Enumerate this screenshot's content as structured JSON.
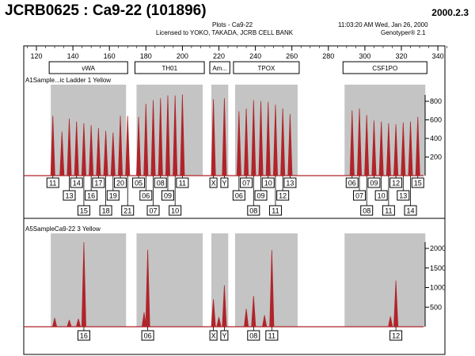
{
  "window": {
    "title": "JCRB0625 : Ca9-22 (101896)",
    "date_code": "2000.2.3"
  },
  "header": {
    "plots_label": "Plots  -  Ca9-22",
    "license": "Licensed to YOKO, TAKADA, JCRB CELL BANK",
    "timestamp": "11:03:20 AM  Wed, Jan 26, 2000",
    "app_version": "Genotyper® 2.1"
  },
  "ruler": {
    "ticks": [
      120,
      140,
      160,
      180,
      200,
      220,
      240,
      260,
      280,
      300,
      320,
      340
    ]
  },
  "loci": [
    {
      "name": "vWA",
      "start": 127,
      "end": 170
    },
    {
      "name": "TH01",
      "start": 174,
      "end": 212
    },
    {
      "name": "Am...",
      "start": 215,
      "end": 226
    },
    {
      "name": "TPOX",
      "start": 228,
      "end": 264
    },
    {
      "name": "CSF1PO",
      "start": 288,
      "end": 334
    }
  ],
  "panels": [
    {
      "title": "A1Sample...ic Ladder  1 Yellow",
      "y_ticks": [
        "200",
        "400",
        "600",
        "800"
      ],
      "bins": [
        [
          127,
          170
        ],
        [
          174,
          212
        ],
        [
          215,
          226
        ],
        [
          228,
          264
        ],
        [
          288,
          334
        ]
      ],
      "peaks": [
        [
          129,
          640
        ],
        [
          134,
          470
        ],
        [
          138,
          610
        ],
        [
          142,
          580
        ],
        [
          146,
          560
        ],
        [
          150,
          540
        ],
        [
          154,
          510
        ],
        [
          158,
          480
        ],
        [
          162,
          460
        ],
        [
          166,
          640
        ],
        [
          170,
          640
        ],
        [
          176,
          630
        ],
        [
          180,
          770
        ],
        [
          184,
          810
        ],
        [
          188,
          830
        ],
        [
          192,
          860
        ],
        [
          196,
          860
        ],
        [
          200,
          870
        ],
        [
          217,
          820
        ],
        [
          223,
          830
        ],
        [
          231,
          690
        ],
        [
          235,
          720
        ],
        [
          239,
          810
        ],
        [
          243,
          800
        ],
        [
          247,
          790
        ],
        [
          251,
          760
        ],
        [
          255,
          720
        ],
        [
          259,
          660
        ],
        [
          293,
          700
        ],
        [
          297,
          720
        ],
        [
          301,
          650
        ],
        [
          305,
          590
        ],
        [
          309,
          580
        ],
        [
          313,
          560
        ],
        [
          317,
          550
        ],
        [
          321,
          570
        ],
        [
          325,
          580
        ],
        [
          329,
          630
        ]
      ],
      "labels": [
        {
          "text": "11",
          "pos": 129,
          "row": 0
        },
        {
          "text": "14",
          "pos": 142,
          "row": 0
        },
        {
          "text": "17",
          "pos": 154,
          "row": 0
        },
        {
          "text": "20",
          "pos": 166,
          "row": 0
        },
        {
          "text": "13",
          "pos": 138,
          "row": 1
        },
        {
          "text": "16",
          "pos": 150,
          "row": 1
        },
        {
          "text": "19",
          "pos": 162,
          "row": 1
        },
        {
          "text": "15",
          "pos": 146,
          "row": 2
        },
        {
          "text": "18",
          "pos": 158,
          "row": 2
        },
        {
          "text": "21",
          "pos": 170,
          "row": 2
        },
        {
          "text": "05",
          "pos": 176,
          "row": 0
        },
        {
          "text": "08",
          "pos": 188,
          "row": 0
        },
        {
          "text": "11",
          "pos": 200,
          "row": 0
        },
        {
          "text": "06",
          "pos": 180,
          "row": 1
        },
        {
          "text": "09",
          "pos": 192,
          "row": 1
        },
        {
          "text": "07",
          "pos": 184,
          "row": 2
        },
        {
          "text": "10",
          "pos": 196,
          "row": 2
        },
        {
          "text": "X",
          "pos": 217,
          "row": 0
        },
        {
          "text": "Y",
          "pos": 223,
          "row": 0
        },
        {
          "text": "07",
          "pos": 235,
          "row": 0
        },
        {
          "text": "10",
          "pos": 247,
          "row": 0
        },
        {
          "text": "13",
          "pos": 259,
          "row": 0
        },
        {
          "text": "06",
          "pos": 231,
          "row": 1
        },
        {
          "text": "09",
          "pos": 243,
          "row": 1
        },
        {
          "text": "12",
          "pos": 255,
          "row": 1
        },
        {
          "text": "08",
          "pos": 239,
          "row": 2
        },
        {
          "text": "11",
          "pos": 251,
          "row": 2
        },
        {
          "text": "06",
          "pos": 293,
          "row": 0
        },
        {
          "text": "09",
          "pos": 305,
          "row": 0
        },
        {
          "text": "12",
          "pos": 317,
          "row": 0
        },
        {
          "text": "15",
          "pos": 329,
          "row": 0
        },
        {
          "text": "07",
          "pos": 297,
          "row": 1
        },
        {
          "text": "10",
          "pos": 309,
          "row": 1
        },
        {
          "text": "13",
          "pos": 321,
          "row": 1
        },
        {
          "text": "08",
          "pos": 301,
          "row": 2
        },
        {
          "text": "11",
          "pos": 313,
          "row": 2
        },
        {
          "text": "14",
          "pos": 325,
          "row": 2
        }
      ]
    },
    {
      "title": "A5SampleCa9-22        3 Yellow",
      "y_ticks": [
        "500",
        "1000",
        "1500",
        "2000"
      ],
      "bins": [
        [
          127,
          170
        ],
        [
          174,
          212
        ],
        [
          215,
          226
        ],
        [
          228,
          264
        ],
        [
          288,
          334
        ]
      ],
      "peaks": [
        [
          130,
          220
        ],
        [
          138,
          170
        ],
        [
          143,
          200
        ],
        [
          146,
          2150
        ],
        [
          179,
          360
        ],
        [
          181,
          1960
        ],
        [
          217,
          700
        ],
        [
          220,
          240
        ],
        [
          223,
          1050
        ],
        [
          235,
          450
        ],
        [
          239,
          780
        ],
        [
          245,
          290
        ],
        [
          249,
          1950
        ],
        [
          314,
          260
        ],
        [
          317,
          1170
        ]
      ],
      "labels": [
        {
          "text": "16",
          "pos": 146,
          "row": 0
        },
        {
          "text": "06",
          "pos": 181,
          "row": 0
        },
        {
          "text": "X",
          "pos": 217,
          "row": 0
        },
        {
          "text": "Y",
          "pos": 223,
          "row": 0
        },
        {
          "text": "08",
          "pos": 239,
          "row": 0
        },
        {
          "text": "11",
          "pos": 249,
          "row": 0
        },
        {
          "text": "12",
          "pos": 317,
          "row": 0
        }
      ]
    }
  ],
  "colors": {
    "bin_shade": "#c4c4c4",
    "trace": "#b0242a",
    "frame": "#000000"
  }
}
